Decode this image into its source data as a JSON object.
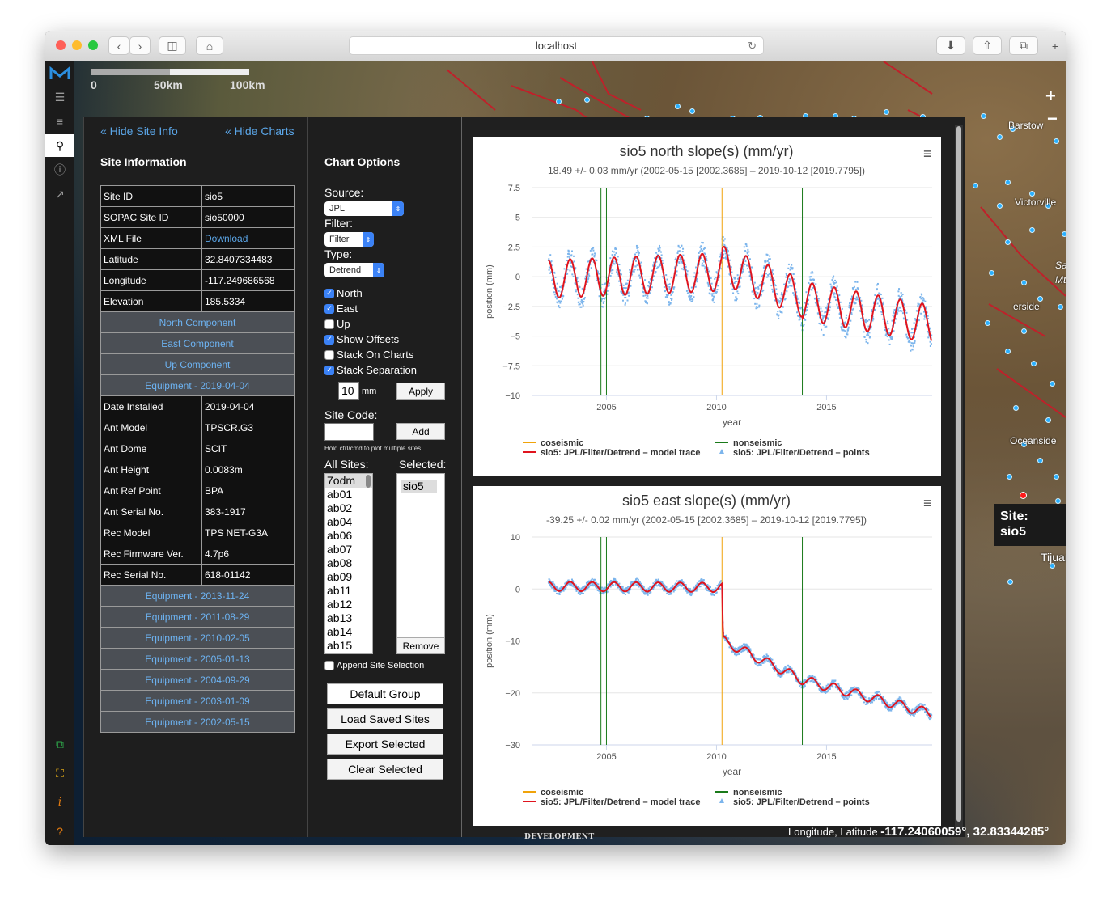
{
  "browser": {
    "url": "localhost"
  },
  "map": {
    "scale_labels": [
      "0",
      "50km",
      "100km"
    ],
    "labels": [
      "Barstow",
      "Victorville",
      "San",
      "Mt.",
      "erside",
      "Oceanside",
      "Tijuana"
    ],
    "tooltip_line1": "Site:",
    "tooltip_line2": "sio5",
    "coord_label": "Longitude, Latitude",
    "coord_value": "-117.24060059°, 32.83344285°",
    "dev_label": "DEVELOPMENT",
    "zoom_in": "+",
    "zoom_out": "−"
  },
  "sidebar": {
    "icons": [
      "layers-icon",
      "list-icon",
      "search-icon",
      "info-icon",
      "share-icon",
      "external-link-icon",
      "fullscreen-icon",
      "italic-info-icon",
      "help-icon"
    ]
  },
  "site_panel": {
    "hide_site_info": "« Hide Site Info",
    "hide_charts": "« Hide Charts",
    "heading": "Site Information",
    "rows": [
      {
        "label": "Site ID",
        "value": "sio5"
      },
      {
        "label": "SOPAC Site ID",
        "value": "sio50000"
      },
      {
        "label": "XML File",
        "value": "Download",
        "link": true
      },
      {
        "label": "Latitude",
        "value": "32.8407334483"
      },
      {
        "label": "Longitude",
        "value": "-117.249686568"
      },
      {
        "label": "Elevation",
        "value": "185.5334"
      }
    ],
    "components": [
      "North Component",
      "East Component",
      "Up Component"
    ],
    "equipment_current": "Equipment - 2019-04-04",
    "equipment_rows": [
      {
        "label": "Date Installed",
        "value": "2019-04-04"
      },
      {
        "label": "Ant Model",
        "value": "TPSCR.G3"
      },
      {
        "label": "Ant Dome",
        "value": "SCIT"
      },
      {
        "label": "Ant Height",
        "value": "0.0083m"
      },
      {
        "label": "Ant Ref Point",
        "value": "BPA"
      },
      {
        "label": "Ant Serial No.",
        "value": "383-1917"
      },
      {
        "label": "Rec Model",
        "value": "TPS NET-G3A"
      },
      {
        "label": "Rec Firmware Ver.",
        "value": "4.7p6"
      },
      {
        "label": "Rec Serial No.",
        "value": "618-01142"
      }
    ],
    "equipment_history": [
      "Equipment - 2013-11-24",
      "Equipment - 2011-08-29",
      "Equipment - 2010-02-05",
      "Equipment - 2005-01-13",
      "Equipment - 2004-09-29",
      "Equipment - 2003-01-09",
      "Equipment - 2002-05-15"
    ]
  },
  "chart_options": {
    "heading": "Chart Options",
    "source_label": "Source:",
    "source_value": "JPL",
    "filter_label": "Filter:",
    "filter_value": "Filter",
    "type_label": "Type:",
    "type_value": "Detrend",
    "checkboxes": [
      {
        "label": "North",
        "checked": true
      },
      {
        "label": "East",
        "checked": true
      },
      {
        "label": "Up",
        "checked": false
      },
      {
        "label": "Show Offsets",
        "checked": true
      },
      {
        "label": "Stack On Charts",
        "checked": false
      },
      {
        "label": "Stack Separation",
        "checked": true
      }
    ],
    "separation_value": "10",
    "separation_unit": "mm",
    "apply_label": "Apply",
    "site_code_label": "Site Code:",
    "add_label": "Add",
    "hint": "Hold ctrl/cmd to plot multiple sites.",
    "all_sites_label": "All Sites:",
    "selected_label": "Selected:",
    "all_sites": [
      "7odm",
      "ab01",
      "ab02",
      "ab04",
      "ab06",
      "ab07",
      "ab08",
      "ab09",
      "ab11",
      "ab12",
      "ab13",
      "ab14",
      "ab15"
    ],
    "selected_sites": [
      "sio5"
    ],
    "remove_label": "Remove",
    "append_label": "Append Site Selection",
    "buttons": [
      "Default Group",
      "Load Saved Sites",
      "Export Selected",
      "Clear Selected"
    ]
  },
  "chart_data": [
    {
      "type": "scatter",
      "title": "sio5 north slope(s) (mm/yr)",
      "subtitle": "18.49 +/- 0.03 mm/yr (2002-05-15 [2002.3685] – 2019-10-12 [2019.7795])",
      "xlabel": "year",
      "ylabel": "position (mm)",
      "xlim": [
        2001.6,
        2019.8
      ],
      "ylim": [
        -10,
        7.5
      ],
      "yticks": [
        "7.5",
        "5",
        "2.5",
        "0",
        "−2.5",
        "−5",
        "−7.5",
        "−10"
      ],
      "ytick_values": [
        7.5,
        5,
        2.5,
        0,
        -2.5,
        -5,
        -7.5,
        -10
      ],
      "xticks": [
        "2005",
        "2010",
        "2015"
      ],
      "xtick_values": [
        2005,
        2010,
        2015
      ],
      "grid": true,
      "legend": [
        {
          "name": "coseismic",
          "color": "#f0a30a",
          "kind": "line"
        },
        {
          "name": "nonseismic",
          "color": "#1a7a1a",
          "kind": "line"
        },
        {
          "name": "sio5: JPL/Filter/Detrend – model trace",
          "color": "#e0141e",
          "kind": "line"
        },
        {
          "name": "sio5: JPL/Filter/Detrend – points",
          "color": "#7cb5ec",
          "kind": "marker"
        }
      ],
      "coseismic": [
        2010.25
      ],
      "nonseismic": [
        2004.75,
        2005.0,
        2013.9
      ],
      "trend_segments": [
        {
          "x0": 2002.37,
          "x1": 2010.25,
          "y0": -0.2,
          "y1": 0.4
        },
        {
          "x0": 2010.25,
          "x1": 2013.9,
          "y0": 1.0,
          "y1": -1.8
        },
        {
          "x0": 2013.9,
          "x1": 2019.78,
          "y0": -2.0,
          "y1": -4.0
        }
      ],
      "seasonal_amplitude": 1.6,
      "noise": 1.0
    },
    {
      "type": "scatter",
      "title": "sio5 east slope(s) (mm/yr)",
      "subtitle": "-39.25 +/- 0.02 mm/yr (2002-05-15 [2002.3685] – 2019-10-12 [2019.7795])",
      "xlabel": "year",
      "ylabel": "position (mm)",
      "xlim": [
        2001.6,
        2019.8
      ],
      "ylim": [
        -30,
        10
      ],
      "yticks": [
        "10",
        "0",
        "−10",
        "−20",
        "−30"
      ],
      "ytick_values": [
        10,
        0,
        -10,
        -20,
        -30
      ],
      "xticks": [
        "2005",
        "2010",
        "2015"
      ],
      "xtick_values": [
        2005,
        2010,
        2015
      ],
      "grid": true,
      "legend": [
        {
          "name": "coseismic",
          "color": "#f0a30a",
          "kind": "line"
        },
        {
          "name": "nonseismic",
          "color": "#1a7a1a",
          "kind": "line"
        },
        {
          "name": "sio5: JPL/Filter/Detrend – model trace",
          "color": "#e0141e",
          "kind": "line"
        },
        {
          "name": "sio5: JPL/Filter/Detrend – points",
          "color": "#7cb5ec",
          "kind": "marker"
        }
      ],
      "coseismic": [
        2010.25
      ],
      "nonseismic": [
        2004.75,
        2005.0,
        2013.9
      ],
      "trend_segments": [
        {
          "x0": 2002.37,
          "x1": 2010.25,
          "y0": 0.5,
          "y1": 0.3
        },
        {
          "x0": 2010.25,
          "x1": 2010.3,
          "y0": 0.3,
          "y1": -10.0
        },
        {
          "x0": 2010.3,
          "x1": 2013.9,
          "y0": -10.0,
          "y1": -17.5
        },
        {
          "x0": 2013.9,
          "x1": 2019.78,
          "y0": -17.5,
          "y1": -24.0
        }
      ],
      "seasonal_amplitude": 0.9,
      "noise": 0.7
    }
  ]
}
